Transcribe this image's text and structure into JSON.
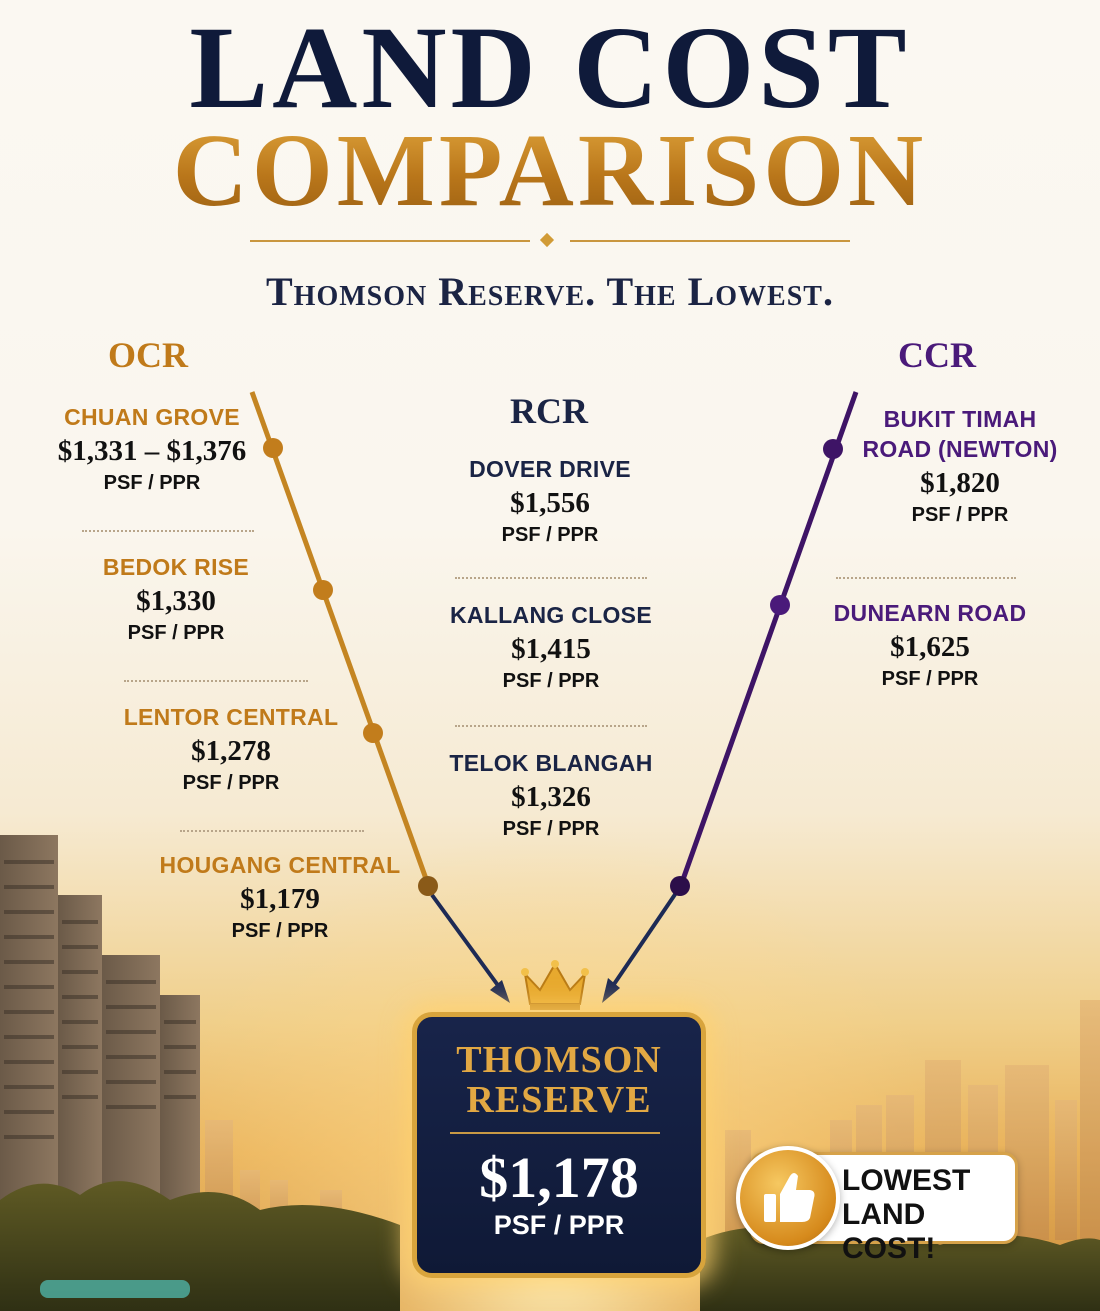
{
  "header": {
    "title_line1": "LAND COST",
    "title_line2": "COMPARISON",
    "subtitle": "Thomson Reserve. The Lowest."
  },
  "columns": {
    "ocr": {
      "label": "OCR",
      "color": "#c07a1a",
      "entries": [
        {
          "name": "CHUAN GROVE",
          "price": "$1,331 – $1,376",
          "unit": "PSF / PPR"
        },
        {
          "name": "BEDOK RISE",
          "price": "$1,330",
          "unit": "PSF / PPR"
        },
        {
          "name": "LENTOR CENTRAL",
          "price": "$1,278",
          "unit": "PSF / PPR"
        },
        {
          "name": "HOUGANG CENTRAL",
          "price": "$1,179",
          "unit": "PSF / PPR"
        }
      ]
    },
    "rcr": {
      "label": "RCR",
      "color": "#1a2445",
      "entries": [
        {
          "name": "DOVER DRIVE",
          "price": "$1,556",
          "unit": "PSF / PPR"
        },
        {
          "name": "KALLANG CLOSE",
          "price": "$1,415",
          "unit": "PSF / PPR"
        },
        {
          "name": "TELOK BLANGAH",
          "price": "$1,326",
          "unit": "PSF / PPR"
        }
      ]
    },
    "ccr": {
      "label": "CCR",
      "color": "#4a1a7a",
      "entries": [
        {
          "name": "BUKIT TIMAH ROAD (NEWTON)",
          "price": "$1,820",
          "unit": "PSF / PPR"
        },
        {
          "name": "DUNEARN ROAD",
          "price": "$1,625",
          "unit": "PSF / PPR"
        }
      ]
    }
  },
  "highlight": {
    "name": "THOMSON RESERVE",
    "price": "$1,178",
    "unit": "PSF / PPR",
    "icon": "crown-icon"
  },
  "badge": {
    "text": "LOWEST LAND COST!",
    "icon": "thumbs-up-icon"
  }
}
